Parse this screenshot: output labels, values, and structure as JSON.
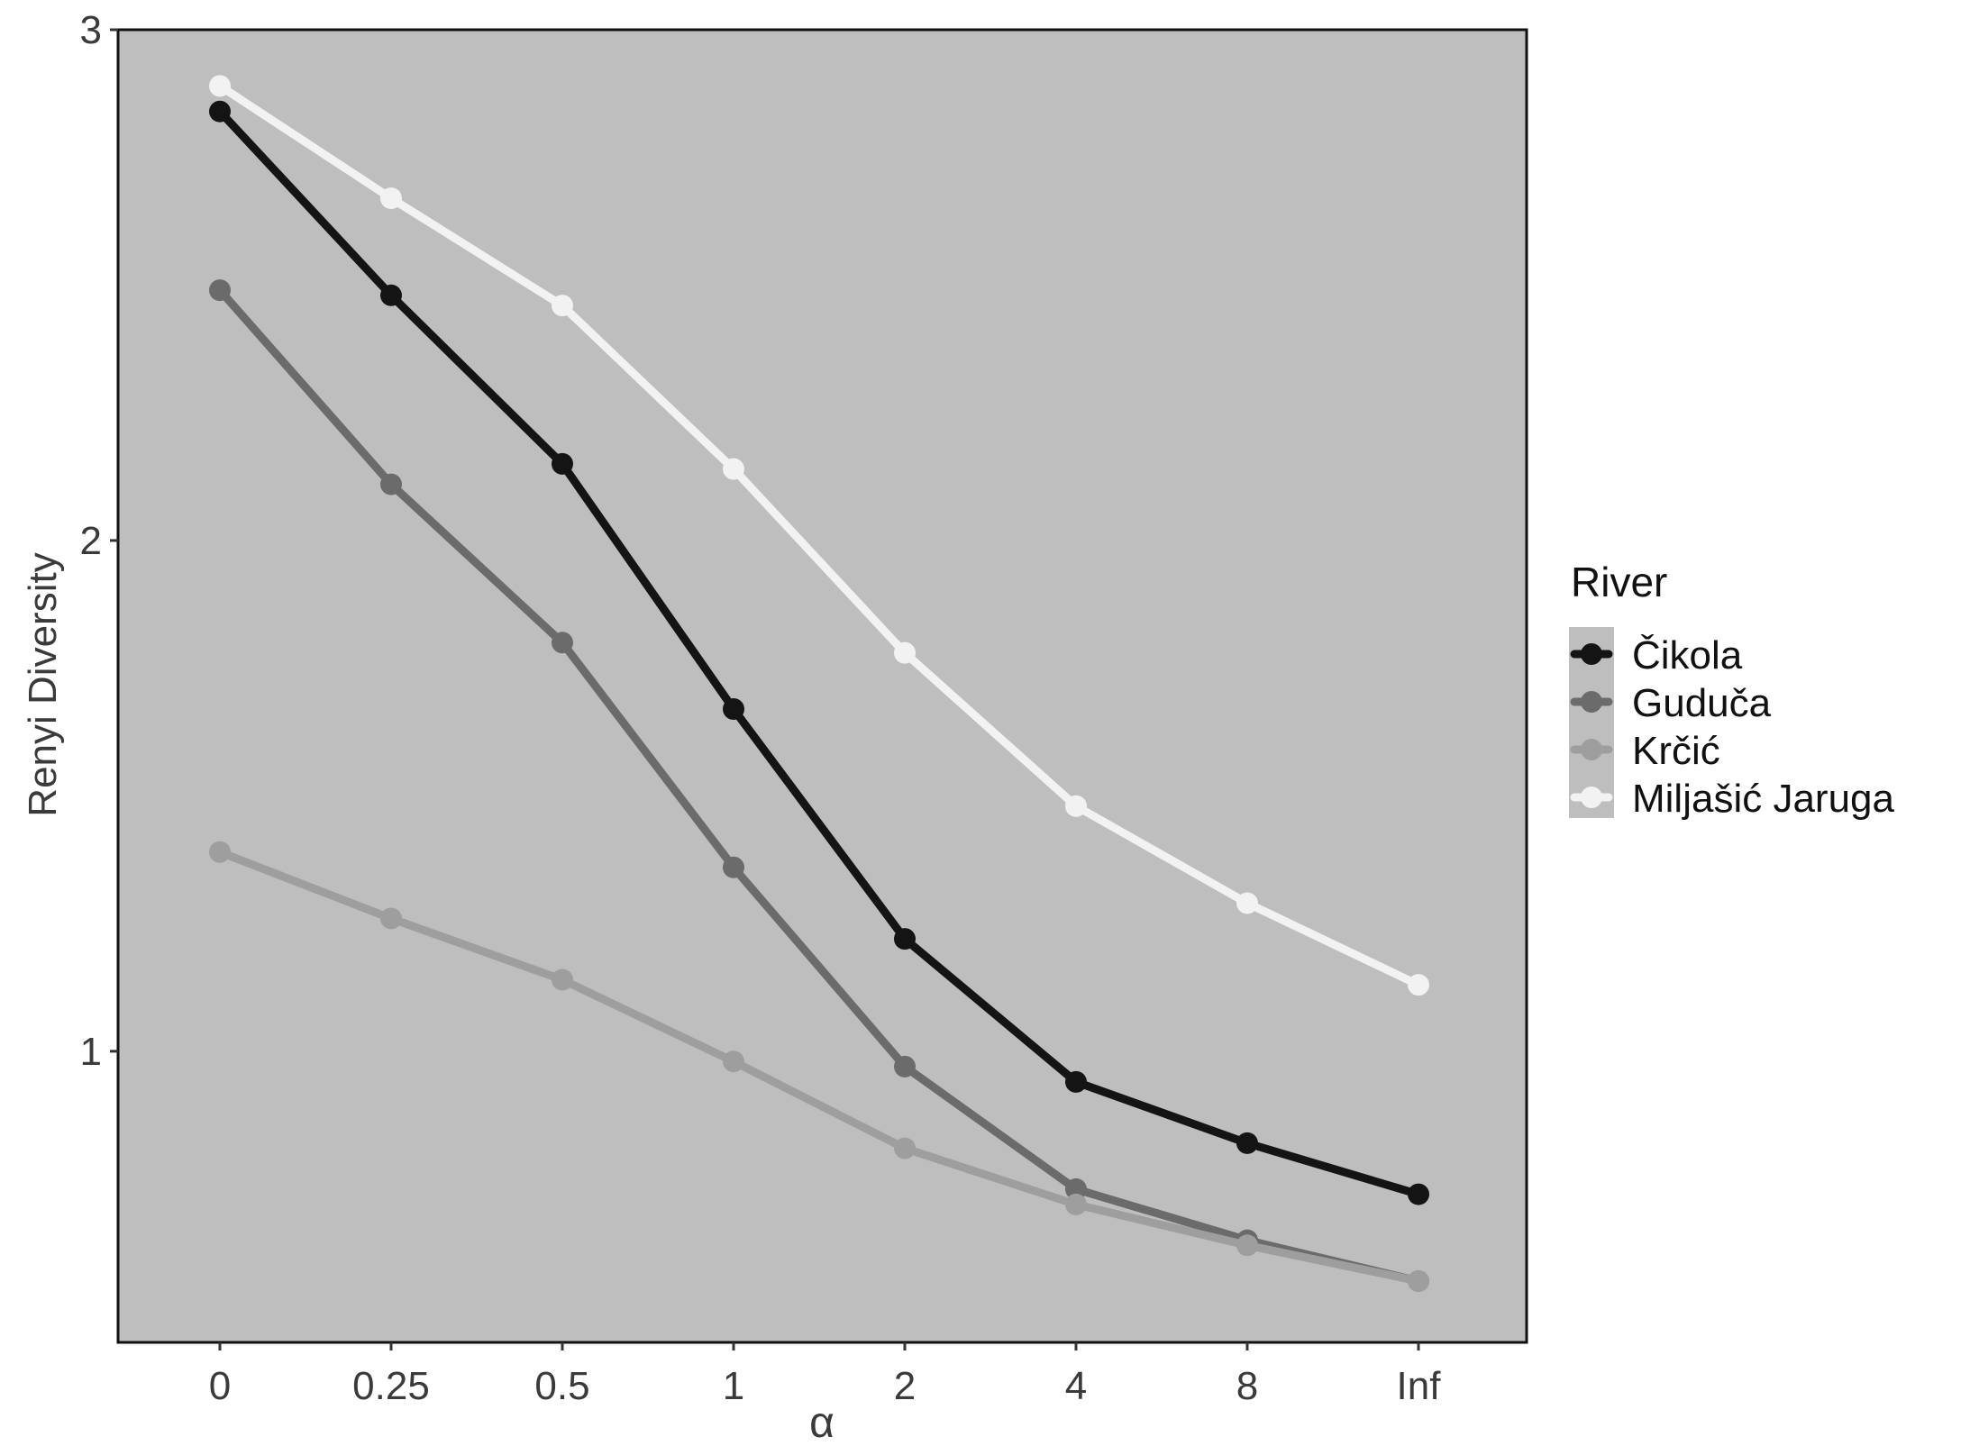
{
  "chart_data": {
    "type": "line",
    "title": "",
    "xlabel": "α",
    "ylabel": "Renyi Diversity",
    "categories": [
      "0",
      "0.25",
      "0.5",
      "1",
      "2",
      "4",
      "8",
      "Inf"
    ],
    "yticks": [
      1,
      2,
      3
    ],
    "ylim": [
      0.43,
      3.0
    ],
    "grid": false,
    "background": "#bebebe",
    "legend": {
      "title": "River",
      "position": "right"
    },
    "series": [
      {
        "name": "Čikola",
        "color": "#141414",
        "values": [
          2.84,
          2.48,
          2.15,
          1.67,
          1.22,
          0.94,
          0.82,
          0.72
        ]
      },
      {
        "name": "Guduča",
        "color": "#6b6b6b",
        "values": [
          2.49,
          2.11,
          1.8,
          1.36,
          0.97,
          0.73,
          0.63,
          0.55
        ]
      },
      {
        "name": "Krčić",
        "color": "#9e9e9e",
        "values": [
          1.39,
          1.26,
          1.14,
          0.98,
          0.81,
          0.7,
          0.62,
          0.55
        ]
      },
      {
        "name": "Miljašić Jaruga",
        "color": "#f2f2f2",
        "values": [
          2.89,
          2.67,
          2.46,
          2.14,
          1.78,
          1.48,
          1.29,
          1.13
        ]
      }
    ]
  }
}
